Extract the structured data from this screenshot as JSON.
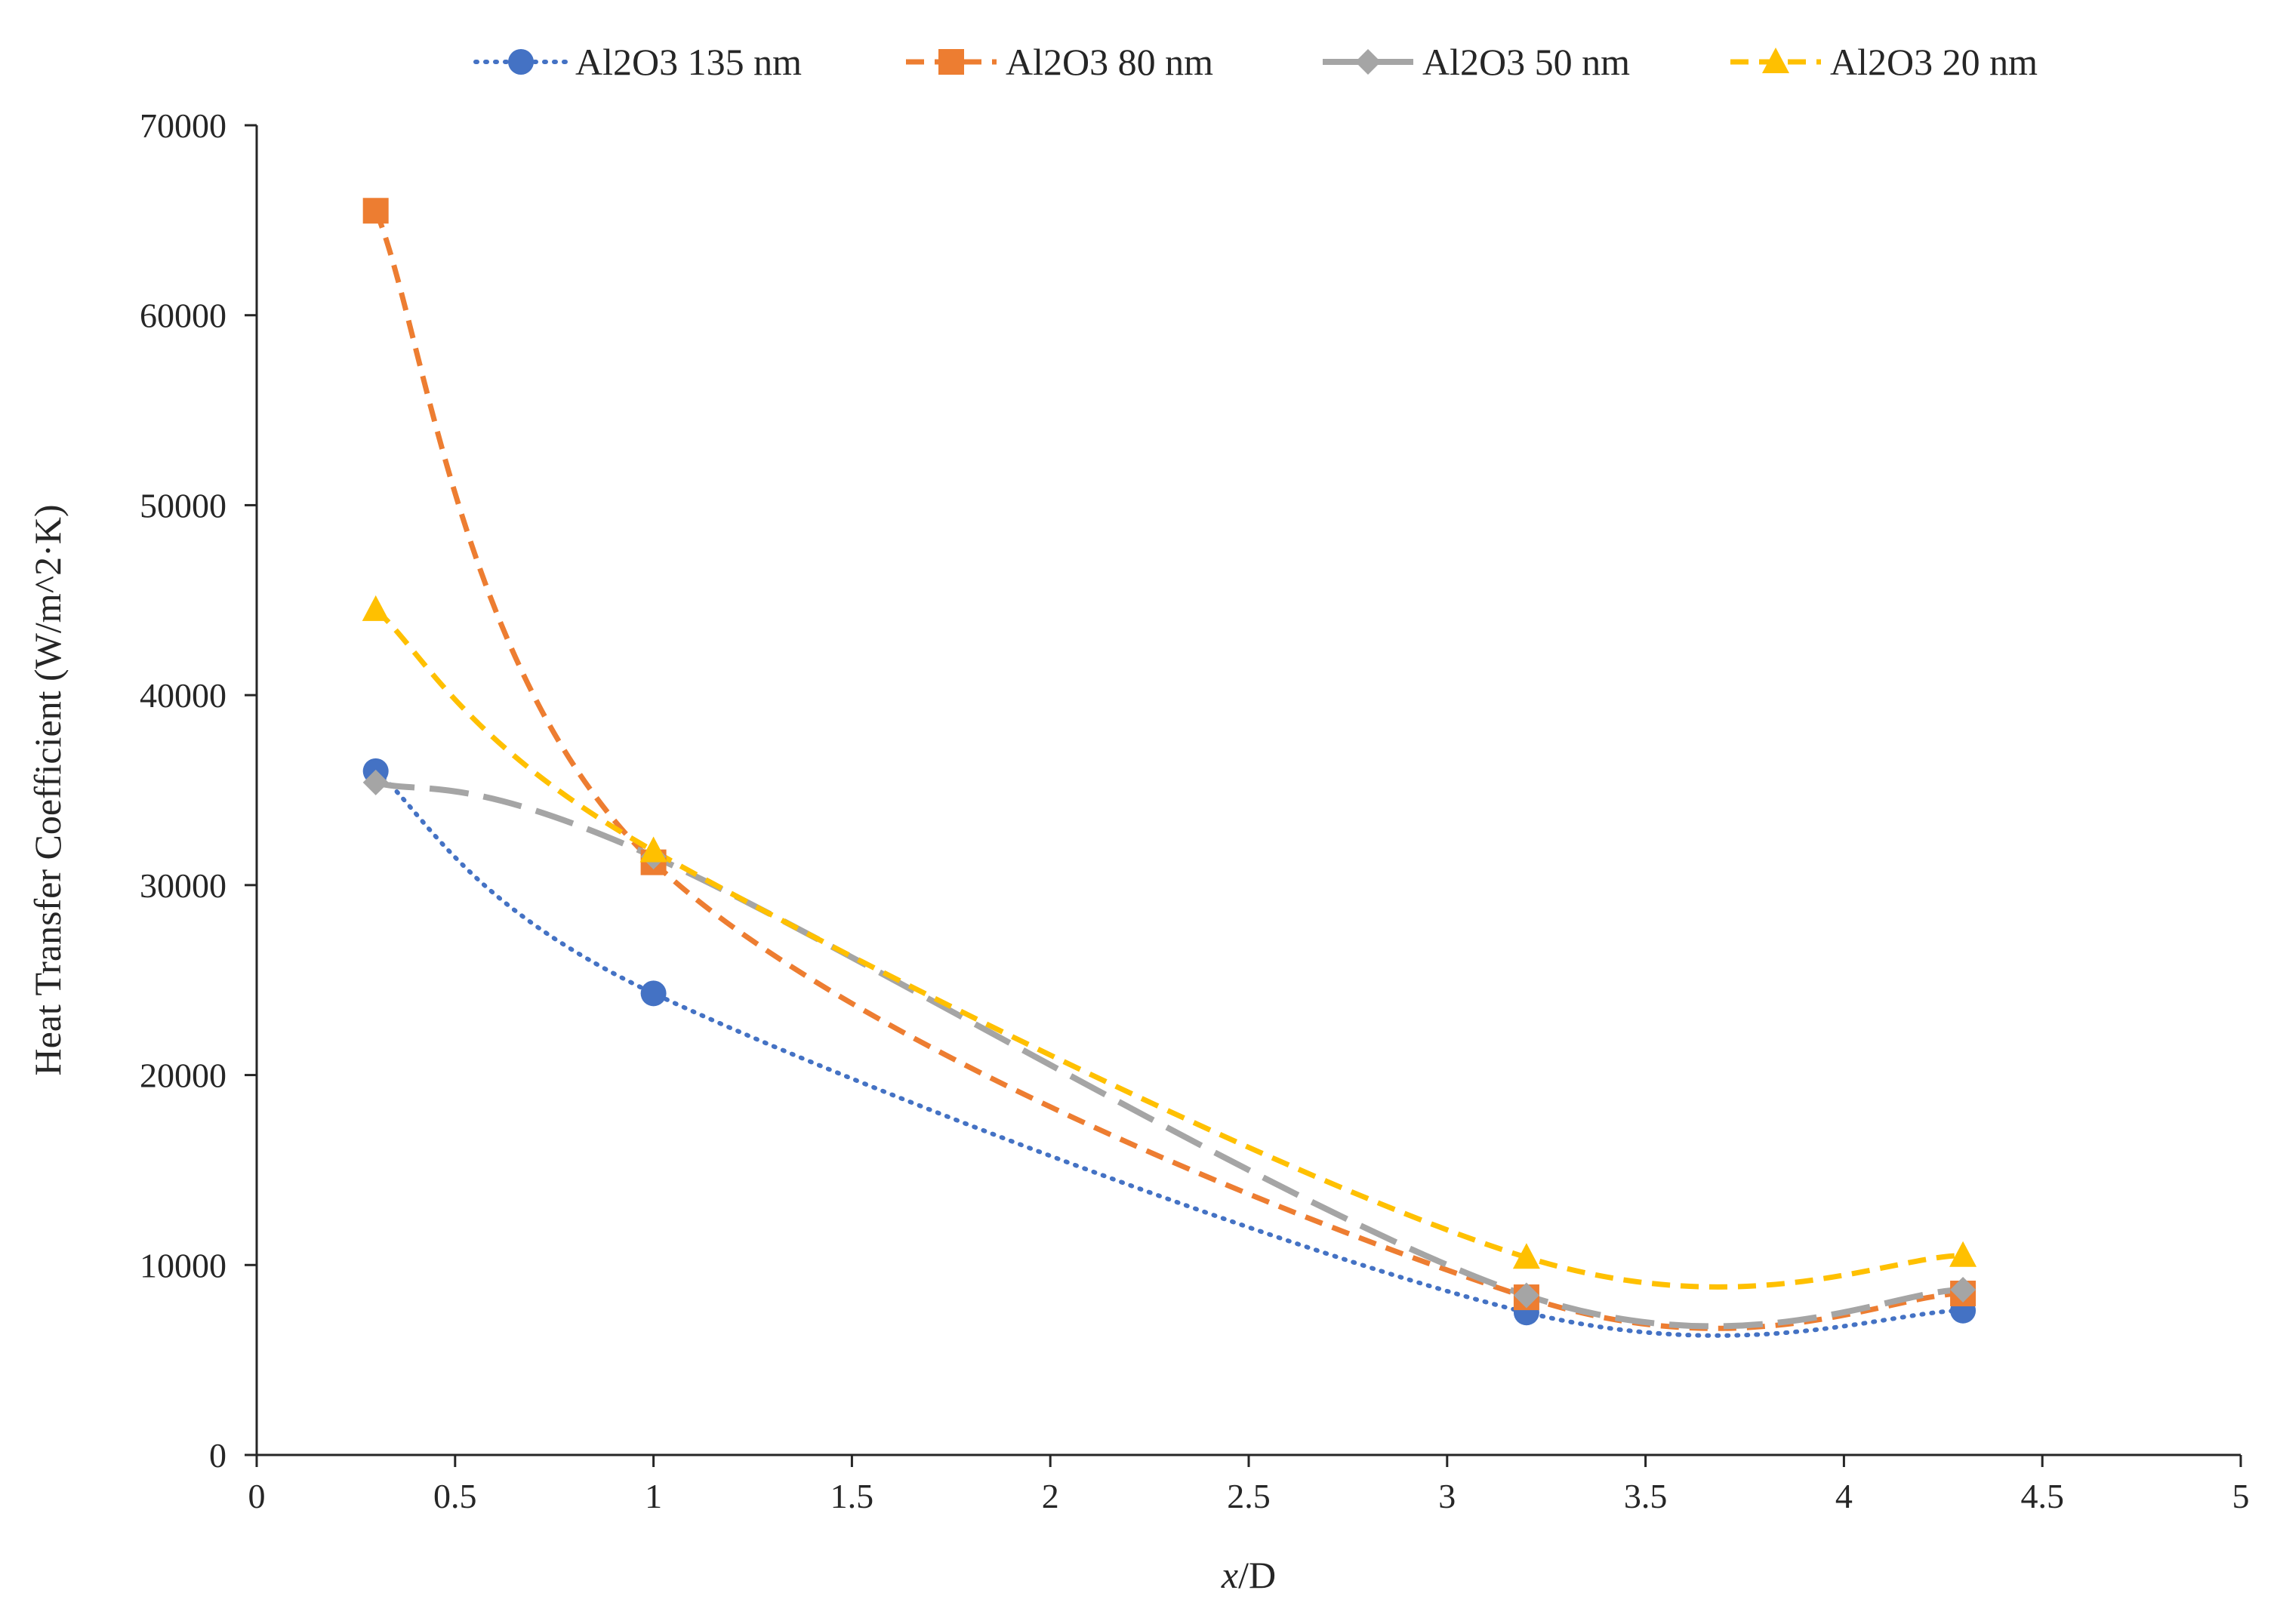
{
  "chart_data": {
    "type": "scatter",
    "title": "",
    "xlabel_italic": "x",
    "xlabel_rest": "/D",
    "ylabel": "Heat Transfer Coefficient  (W/m^2·K)",
    "xlim": [
      0,
      5
    ],
    "ylim": [
      0,
      70000
    ],
    "xticks": [
      0,
      0.5,
      1,
      1.5,
      2,
      2.5,
      3,
      3.5,
      4,
      4.5,
      5
    ],
    "yticks": [
      0,
      10000,
      20000,
      30000,
      40000,
      50000,
      60000,
      70000
    ],
    "grid": false,
    "legend_position": "top",
    "x": [
      0.3,
      1.0,
      3.2,
      4.3
    ],
    "series": [
      {
        "name": "Al2O3 135 nm",
        "values": [
          36000,
          24300,
          7500,
          7600
        ],
        "color": "#4472C4",
        "marker": "circle",
        "dash": "dotted"
      },
      {
        "name": "Al2O3 80 nm",
        "values": [
          65500,
          31200,
          8300,
          8500
        ],
        "color": "#ED7D31",
        "marker": "square",
        "dash": "dashed"
      },
      {
        "name": "Al2O3 50 nm",
        "values": [
          35400,
          31500,
          8400,
          8700
        ],
        "color": "#A5A5A5",
        "marker": "diamond",
        "dash": "long-dash"
      },
      {
        "name": "Al2O3 20 nm",
        "values": [
          44500,
          31800,
          10400,
          10500
        ],
        "color": "#FFC000",
        "marker": "triangle",
        "dash": "dashed"
      }
    ]
  }
}
